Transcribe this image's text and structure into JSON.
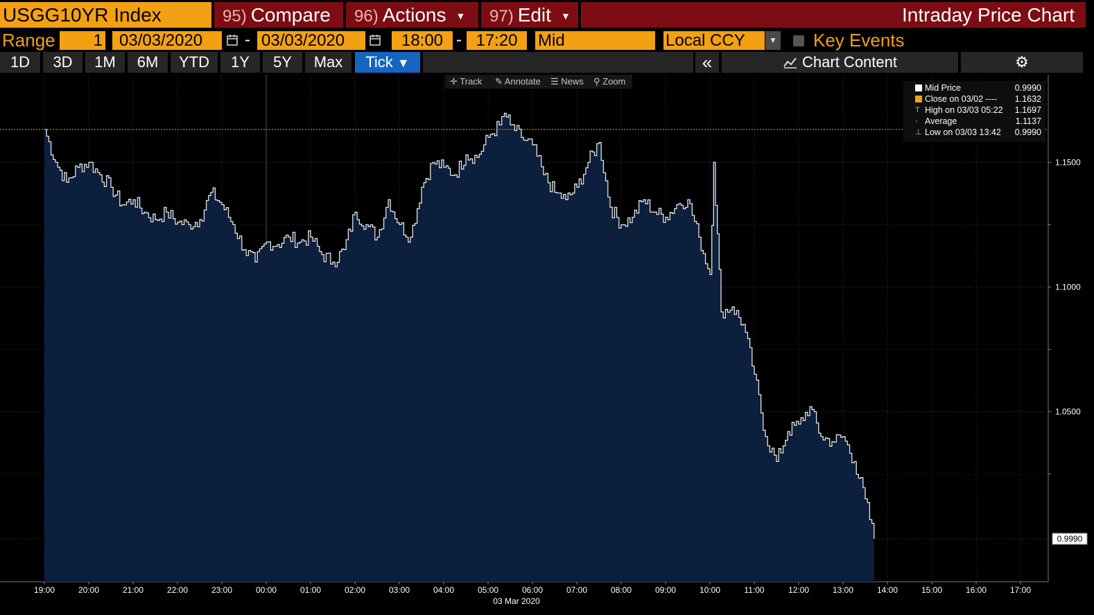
{
  "header": {
    "ticker": "USGG10YR Index",
    "compare": {
      "num": "95)",
      "label": "Compare"
    },
    "actions": {
      "num": "96)",
      "label": "Actions"
    },
    "edit": {
      "num": "97)",
      "label": "Edit"
    },
    "title": "Intraday Price Chart"
  },
  "controls": {
    "range_label": "Range",
    "range_value": "1",
    "start_date": "03/03/2020",
    "end_date": "03/03/2020",
    "start_time": "18:00",
    "end_time": "17:20",
    "price_field": "Mid",
    "currency": "Local CCY",
    "key_events_label": "Key Events",
    "dash": "-"
  },
  "tabs": [
    "1D",
    "3D",
    "1M",
    "6M",
    "YTD",
    "1Y",
    "5Y",
    "Max"
  ],
  "active_tab": "Tick",
  "collapse_icon": "«",
  "chart_content_label": "Chart Content",
  "toolbar": {
    "track": "Track",
    "annotate": "Annotate",
    "news": "News",
    "zoom": "Zoom"
  },
  "legend": {
    "mid_price": {
      "label": "Mid Price",
      "value": "0.9990"
    },
    "close": {
      "label": "Close on 03/02 ----",
      "value": "1.1632"
    },
    "high": {
      "label": "High on 03/03 05:22",
      "value": "1.1697"
    },
    "average": {
      "label": "Average",
      "value": "1.1137"
    },
    "low": {
      "label": "Low on 03/03 13:42",
      "value": "0.9990"
    }
  },
  "colors": {
    "accent": "#f3a012",
    "header_red": "#7d0d13",
    "area_fill": "#0c1f3d",
    "active_tab": "#1565c0"
  },
  "chart_data": {
    "type": "area",
    "x_label_date": "03 Mar 2020",
    "x_ticks": [
      "19:00",
      "20:00",
      "21:00",
      "22:00",
      "23:00",
      "00:00",
      "01:00",
      "02:00",
      "03:00",
      "04:00",
      "05:00",
      "06:00",
      "07:00",
      "08:00",
      "09:00",
      "10:00",
      "11:00",
      "12:00",
      "13:00",
      "14:00",
      "15:00",
      "16:00",
      "17:00"
    ],
    "y_ticks": [
      "1.1500",
      "1.1000",
      "1.0500"
    ],
    "ylim": [
      0.983,
      1.18
    ],
    "last_value_label": "0.9990",
    "reference_line": {
      "name": "Close on 03/02",
      "value": 1.1632
    },
    "series": [
      {
        "name": "Mid Price",
        "x": [
          "19:00",
          "19:15",
          "19:30",
          "19:45",
          "20:00",
          "20:15",
          "20:30",
          "20:45",
          "21:00",
          "21:15",
          "21:30",
          "21:45",
          "22:00",
          "22:15",
          "22:30",
          "22:45",
          "23:00",
          "23:15",
          "23:30",
          "23:45",
          "00:00",
          "00:15",
          "00:30",
          "00:45",
          "01:00",
          "01:15",
          "01:30",
          "01:45",
          "02:00",
          "02:15",
          "02:30",
          "02:45",
          "03:00",
          "03:15",
          "03:30",
          "03:45",
          "04:00",
          "04:15",
          "04:30",
          "04:45",
          "05:00",
          "05:15",
          "05:22",
          "05:30",
          "05:45",
          "06:00",
          "06:15",
          "06:30",
          "06:45",
          "07:00",
          "07:15",
          "07:30",
          "07:45",
          "08:00",
          "08:15",
          "08:30",
          "08:45",
          "09:00",
          "09:15",
          "09:30",
          "09:45",
          "10:00",
          "10:05",
          "10:15",
          "10:30",
          "10:45",
          "11:00",
          "11:15",
          "11:30",
          "11:45",
          "12:00",
          "12:15",
          "12:30",
          "12:45",
          "13:00",
          "13:15",
          "13:30",
          "13:42"
        ],
        "values": [
          1.1632,
          1.15,
          1.142,
          1.148,
          1.15,
          1.145,
          1.14,
          1.133,
          1.135,
          1.13,
          1.127,
          1.13,
          1.126,
          1.125,
          1.127,
          1.138,
          1.133,
          1.125,
          1.115,
          1.11,
          1.118,
          1.117,
          1.12,
          1.118,
          1.12,
          1.113,
          1.11,
          1.115,
          1.13,
          1.125,
          1.12,
          1.135,
          1.125,
          1.12,
          1.14,
          1.15,
          1.148,
          1.145,
          1.153,
          1.152,
          1.16,
          1.165,
          1.1697,
          1.165,
          1.16,
          1.157,
          1.145,
          1.138,
          1.135,
          1.14,
          1.15,
          1.158,
          1.132,
          1.125,
          1.128,
          1.135,
          1.13,
          1.128,
          1.133,
          1.135,
          1.12,
          1.105,
          1.15,
          1.09,
          1.092,
          1.085,
          1.065,
          1.04,
          1.03,
          1.042,
          1.045,
          1.052,
          1.04,
          1.038,
          1.04,
          1.03,
          1.015,
          0.999
        ]
      }
    ]
  }
}
